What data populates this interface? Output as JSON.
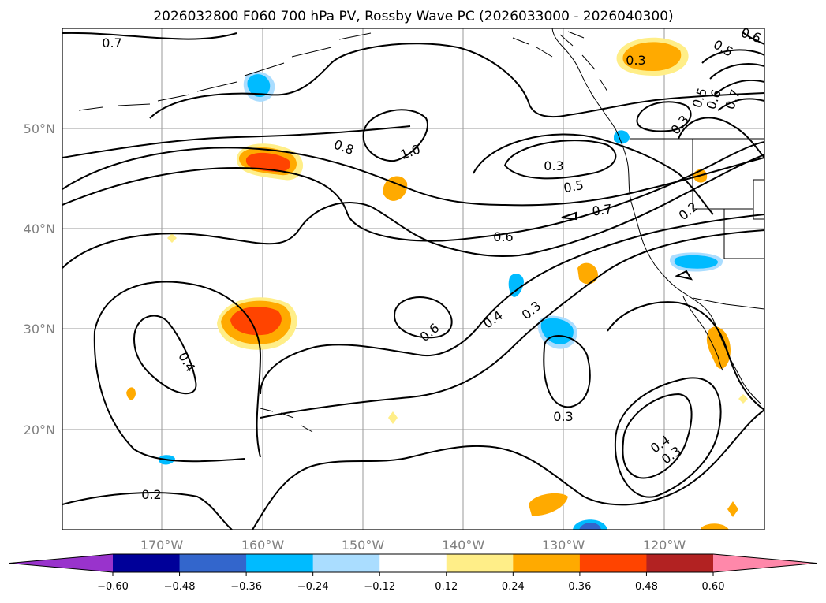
{
  "title": "2026032800 F060 700 hPa PV, Rossby Wave PC (2026033000 - 2026040300)",
  "map": {
    "lat_labels": [
      "50°N",
      "40°N",
      "30°N",
      "20°N"
    ],
    "lon_labels": [
      "170°W",
      "160°W",
      "150°W",
      "140°W",
      "130°W",
      "120°W"
    ],
    "lat_values": [
      50,
      40,
      30,
      20
    ],
    "lon_values": [
      -170,
      -160,
      -150,
      -140,
      -130,
      -120
    ],
    "contour_labels": [
      "0.7",
      "0.8",
      "1.0",
      "0.3",
      "0.5",
      "0.7",
      "0.2",
      "0.6",
      "0.6",
      "0.4",
      "0.3",
      "0.4",
      "0.3",
      "0.4",
      "0.3",
      "0.2",
      "0.3",
      "0.5",
      "0.6",
      "0.7",
      "0.5",
      "0.3",
      "0.6"
    ]
  },
  "colorbar": {
    "ticks": [
      "−0.60",
      "−0.48",
      "−0.36",
      "−0.24",
      "−0.12",
      "0.12",
      "0.24",
      "0.36",
      "0.48",
      "0.60"
    ],
    "colors": [
      "#9933cc",
      "#000099",
      "#3366cc",
      "#00bbff",
      "#aaddff",
      "#ffffff",
      "#ffee88",
      "#ffaa00",
      "#ff4400",
      "#b22222",
      "#ff88aa"
    ]
  },
  "anomaly_colors": {
    "pos1": "#ffee88",
    "pos2": "#ffaa00",
    "pos3": "#ff4400",
    "neg1": "#aaddff",
    "neg2": "#00bbff",
    "neg3": "#3366cc"
  }
}
